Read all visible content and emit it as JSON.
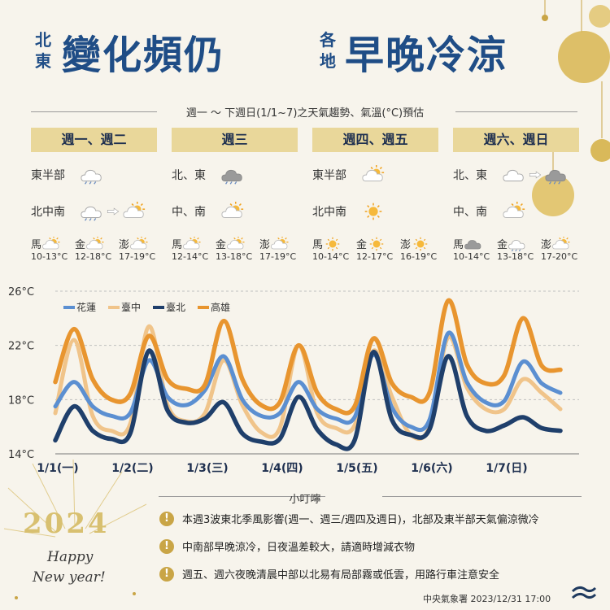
{
  "header": {
    "left_side": [
      "北",
      "東"
    ],
    "left_main": "變化頻仍",
    "right_side": [
      "各",
      "地"
    ],
    "right_main": "早晚冷涼"
  },
  "subtitle": "週一 ～ 下週日(1/1~7)之天氣趨勢、氣溫(°C)預估",
  "panels": [
    {
      "label": "週一、週二",
      "regions": [
        {
          "name": "東半部",
          "icons": [
            "cloud-rain-icon"
          ]
        },
        {
          "name": "北中南",
          "icons": [
            "cloud-rain-icon",
            "arrow-right-icon",
            "sun-cloud-icon"
          ]
        }
      ],
      "cities": [
        {
          "name": "馬",
          "icon": "sun-cloud-icon",
          "temp": "10-13°C"
        },
        {
          "name": "金",
          "icon": "sun-cloud-icon",
          "temp": "12-18°C"
        },
        {
          "name": "澎",
          "icon": "sun-cloud-icon",
          "temp": "17-19°C"
        }
      ]
    },
    {
      "label": "週三",
      "regions": [
        {
          "name": "北、東",
          "icons": [
            "dark-cloud-rain-icon"
          ]
        },
        {
          "name": "中、南",
          "icons": [
            "sun-cloud-icon"
          ]
        }
      ],
      "cities": [
        {
          "name": "馬",
          "icon": "sun-cloud-icon",
          "temp": "12-14°C"
        },
        {
          "name": "金",
          "icon": "sun-cloud-icon",
          "temp": "13-18°C"
        },
        {
          "name": "澎",
          "icon": "sun-cloud-icon",
          "temp": "17-19°C"
        }
      ]
    },
    {
      "label": "週四、週五",
      "regions": [
        {
          "name": "東半部",
          "icons": [
            "sun-cloud-icon"
          ]
        },
        {
          "name": "北中南",
          "icons": [
            "sun-icon"
          ]
        }
      ],
      "cities": [
        {
          "name": "馬",
          "icon": "sun-icon",
          "temp": "10-14°C"
        },
        {
          "name": "金",
          "icon": "sun-icon",
          "temp": "12-17°C"
        },
        {
          "name": "澎",
          "icon": "sun-icon",
          "temp": "16-19°C"
        }
      ]
    },
    {
      "label": "週六、週日",
      "regions": [
        {
          "name": "北、東",
          "icons": [
            "cloud-icon",
            "arrow-right-icon",
            "dark-cloud-rain-icon"
          ]
        },
        {
          "name": "中、南",
          "icons": [
            "sun-cloud-icon"
          ]
        }
      ],
      "cities": [
        {
          "name": "馬",
          "icon": "dark-cloud-icon",
          "temp": "10-14°C"
        },
        {
          "name": "金",
          "icon": "cloud-rain-icon",
          "temp": "13-18°C"
        },
        {
          "name": "澎",
          "icon": "sun-cloud-icon",
          "temp": "17-20°C"
        }
      ]
    }
  ],
  "chart_data": {
    "type": "line",
    "title": "",
    "xlabel": "",
    "ylabel": "",
    "yticks": [
      "26°C",
      "22°C",
      "18°C",
      "14°C"
    ],
    "ylim": [
      14,
      26
    ],
    "xlim": [
      1,
      8
    ],
    "x_tick_positions": [
      1,
      2,
      3,
      4,
      5,
      6,
      7
    ],
    "x_tick_labels": [
      "1/1(一)",
      "1/2(二)",
      "1/3(三)",
      "1/4(四)",
      "1/5(五)",
      "1/6(六)",
      "1/7(日)"
    ],
    "grid": true,
    "legend_position": "top-left",
    "series": [
      {
        "name": "花蓮",
        "color": "#5b8fd1",
        "x": [
          1,
          1.25,
          1.5,
          1.75,
          2,
          2.25,
          2.5,
          2.75,
          3,
          3.25,
          3.5,
          3.75,
          4,
          4.25,
          4.5,
          4.75,
          5,
          5.25,
          5.5,
          5.75,
          6,
          6.25,
          6.5,
          6.75,
          7,
          7.25,
          7.5,
          7.75
        ],
        "values": [
          17.5,
          19.3,
          17.5,
          16.8,
          17.0,
          20.9,
          18.2,
          17.6,
          18.7,
          21.2,
          18.0,
          16.8,
          17.0,
          19.3,
          17.3,
          16.6,
          16.7,
          21.3,
          17.4,
          16.0,
          16.5,
          22.9,
          19.3,
          17.8,
          17.9,
          20.8,
          19.2,
          18.5
        ]
      },
      {
        "name": "臺中",
        "color": "#f0c48a",
        "x": [
          1,
          1.25,
          1.5,
          1.75,
          2,
          2.25,
          2.5,
          2.75,
          3,
          3.25,
          3.5,
          3.75,
          4,
          4.25,
          4.5,
          4.75,
          5,
          5.25,
          5.5,
          5.75,
          6,
          6.25,
          6.5,
          6.75,
          7,
          7.25,
          7.5,
          7.75
        ],
        "values": [
          17.0,
          22.4,
          16.8,
          15.7,
          16.2,
          23.4,
          17.6,
          16.4,
          17.0,
          20.9,
          17.6,
          15.6,
          15.9,
          22.0,
          17.0,
          15.9,
          16.1,
          21.6,
          18.2,
          15.4,
          16.0,
          22.6,
          18.9,
          17.3,
          17.3,
          19.5,
          18.5,
          17.3
        ]
      },
      {
        "name": "臺北",
        "color": "#1f3f6b",
        "x": [
          1,
          1.25,
          1.5,
          1.75,
          2,
          2.25,
          2.5,
          2.75,
          3,
          3.25,
          3.5,
          3.75,
          4,
          4.25,
          4.5,
          4.75,
          5,
          5.25,
          5.5,
          5.75,
          6,
          6.25,
          6.5,
          6.75,
          7,
          7.25,
          7.5,
          7.75
        ],
        "values": [
          15.0,
          17.5,
          15.7,
          15.1,
          15.5,
          21.6,
          17.2,
          16.3,
          16.6,
          17.8,
          15.5,
          14.9,
          15.1,
          18.2,
          15.8,
          14.7,
          15.0,
          21.5,
          16.5,
          15.4,
          15.8,
          21.2,
          16.8,
          15.7,
          16.1,
          16.7,
          15.9,
          15.7
        ]
      },
      {
        "name": "高雄",
        "color": "#e8952f",
        "x": [
          1,
          1.25,
          1.5,
          1.75,
          2,
          2.25,
          2.5,
          2.75,
          3,
          3.25,
          3.5,
          3.75,
          4,
          4.25,
          4.5,
          4.75,
          5,
          5.25,
          5.5,
          5.75,
          6,
          6.25,
          6.5,
          6.75,
          7,
          7.25,
          7.5,
          7.75
        ],
        "values": [
          19.3,
          23.2,
          19.5,
          18.0,
          18.4,
          22.7,
          19.5,
          18.8,
          19.1,
          23.8,
          19.5,
          17.6,
          17.8,
          22.0,
          18.5,
          17.3,
          17.5,
          22.5,
          19.2,
          18.2,
          18.5,
          25.3,
          20.6,
          19.2,
          19.8,
          24.0,
          20.5,
          20.2
        ]
      }
    ]
  },
  "notes": {
    "title": "小叮嚀",
    "items": [
      "本週3波東北季風影響(週一、週三/週四及週日)，北部及東半部天氣偏涼微冷",
      "中南部早晚涼冷，日夜溫差較大，請適時增減衣物",
      "週五、週六夜晚清晨中部以北易有局部霧或低雲，用路行車注意安全"
    ]
  },
  "decor": {
    "year": "2024",
    "greeting": [
      "Happy",
      "New year!"
    ]
  },
  "footer": "中央氣象署  2023/12/31 17:00",
  "colors": {
    "title_blue": "#1f4d86",
    "panel_gold": "#e9d79a",
    "accent_gold": "#c9a546",
    "background": "#f7f4ec"
  }
}
